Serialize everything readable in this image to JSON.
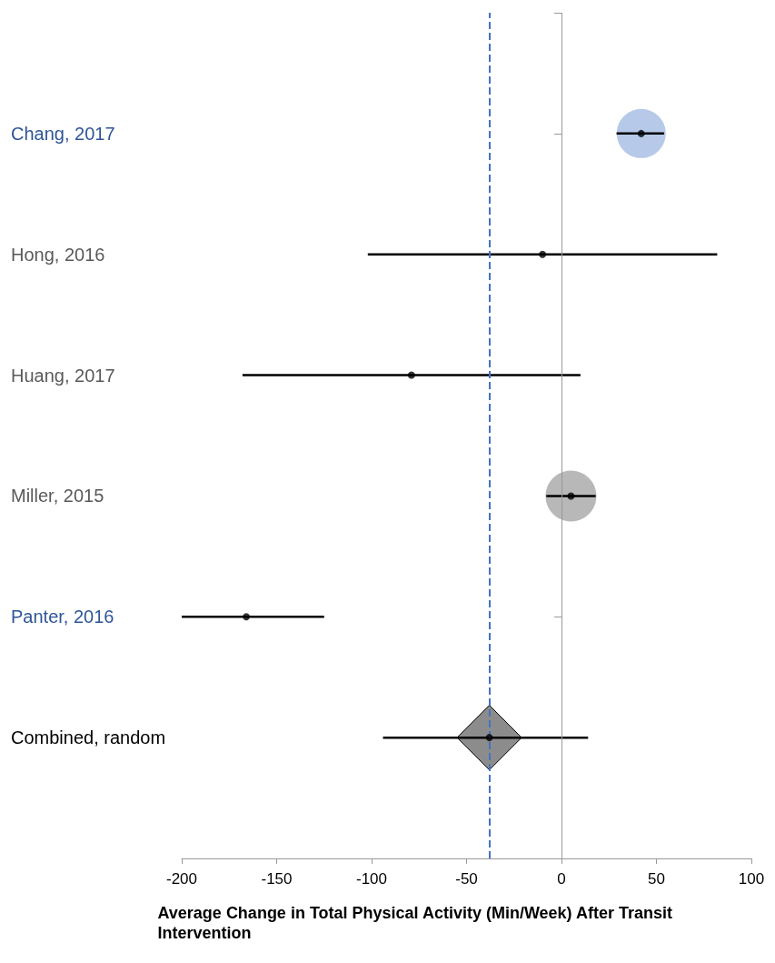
{
  "chart_data": {
    "type": "scatter",
    "orientation": "horizontal",
    "categories": [
      "Chang, 2017",
      "Hong, 2016",
      "Huang, 2017",
      "Miller, 2015",
      "Panter, 2016",
      "Combined, random"
    ],
    "xlabel": "Average Change in Total Physical Activity (Min/Week) After Transit Intervention",
    "xlim": [
      -200,
      100
    ],
    "xticks": [
      -200,
      -150,
      -100,
      -50,
      0,
      50,
      100
    ],
    "grid": false,
    "ref_lines": [
      {
        "axis": "x",
        "value": 0,
        "color": "#999999",
        "line_style": "solid"
      },
      {
        "axis": "x",
        "value": -38,
        "color": "#4472c4",
        "line_style": "dashed"
      }
    ],
    "series": [
      {
        "type": "bubble",
        "colors": [
          "#a4bbe2",
          null,
          null,
          "#a6a6a6",
          null,
          null
        ],
        "values": [
          42,
          null,
          null,
          5,
          null,
          null
        ],
        "sizes": [
          0.93,
          null,
          null,
          1,
          null,
          null
        ]
      },
      {
        "type": "scatter",
        "marker": "diamond",
        "color": "#8c8c8c",
        "values": [
          null,
          null,
          null,
          null,
          null,
          -38
        ],
        "errors": [
          null,
          null,
          null,
          null,
          null,
          [
            -55,
            -21
          ]
        ]
      },
      {
        "type": "scatter",
        "marker": "circle",
        "color": "#000000",
        "values": [
          42,
          -10,
          -79,
          5,
          -166,
          -38
        ],
        "errors": [
          [
            29,
            54
          ],
          [
            -102,
            82
          ],
          [
            -168,
            10
          ],
          [
            -8,
            18
          ],
          [
            -200,
            -125
          ],
          [
            -94,
            14
          ]
        ]
      }
    ]
  }
}
